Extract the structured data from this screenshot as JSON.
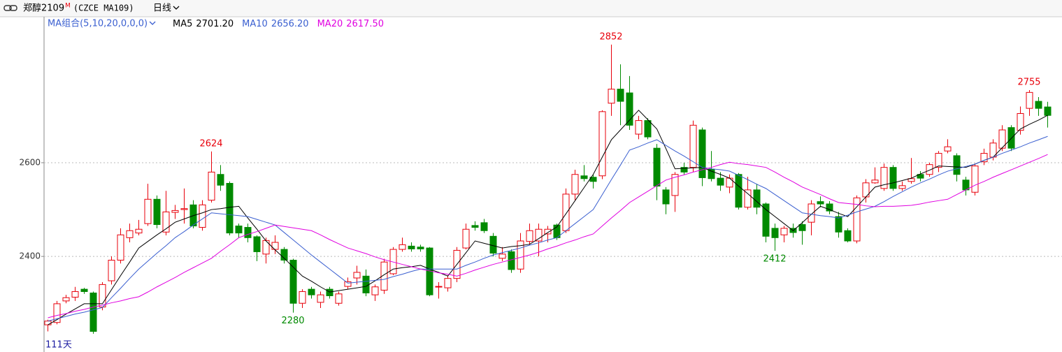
{
  "header": {
    "title": "郑醇2109",
    "badge": "M",
    "code": "(CZCE MA109)",
    "period": "日线"
  },
  "chart_data": {
    "type": "candlestick",
    "ma_group": "MA组合(5,10,20,0,0,0)",
    "bar_count_label": "111天",
    "ylim": [
      2196,
      2910
    ],
    "yticks": [
      2400,
      2600
    ],
    "grid": true,
    "up_color": "#e8000b",
    "down_color": "#008a00",
    "open": [
      2254,
      2259,
      2305,
      2313,
      2330,
      2322,
      2292,
      2348,
      2392,
      2440,
      2450,
      2470,
      2522,
      2452,
      2494,
      2500,
      2510,
      2462,
      2520,
      2575,
      2556,
      2465,
      2462,
      2442,
      2405,
      2415,
      2415,
      2392,
      2300,
      2330,
      2302,
      2330,
      2300,
      2336,
      2354,
      2358,
      2318,
      2328,
      2363,
      2415,
      2422,
      2420,
      2418,
      2335,
      2333,
      2353,
      2418,
      2466,
      2472,
      2443,
      2396,
      2410,
      2373,
      2432,
      2433,
      2448,
      2467,
      2455,
      2533,
      2572,
      2569,
      2572,
      2727,
      2757,
      2749,
      2661,
      2690,
      2631,
      2542,
      2530,
      2590,
      2590,
      2670,
      2586,
      2567,
      2548,
      2575,
      2505,
      2542,
      2512,
      2460,
      2446,
      2460,
      2468,
      2473,
      2517,
      2512,
      2485,
      2455,
      2433,
      2527,
      2557,
      2545,
      2590,
      2545,
      2560,
      2575,
      2575,
      2590,
      2625,
      2615,
      2563,
      2537,
      2602,
      2612,
      2631,
      2675,
      2669,
      2716,
      2731,
      2719
    ],
    "high": [
      2265,
      2305,
      2318,
      2335,
      2333,
      2325,
      2345,
      2400,
      2460,
      2470,
      2478,
      2555,
      2530,
      2540,
      2510,
      2545,
      2520,
      2520,
      2624,
      2595,
      2560,
      2470,
      2470,
      2445,
      2440,
      2445,
      2420,
      2395,
      2330,
      2335,
      2325,
      2335,
      2325,
      2355,
      2380,
      2372,
      2340,
      2395,
      2420,
      2440,
      2430,
      2425,
      2420,
      2345,
      2360,
      2420,
      2470,
      2475,
      2480,
      2450,
      2420,
      2415,
      2450,
      2470,
      2470,
      2465,
      2470,
      2545,
      2585,
      2595,
      2575,
      2712,
      2852,
      2810,
      2785,
      2700,
      2695,
      2640,
      2548,
      2580,
      2600,
      2690,
      2675,
      2625,
      2580,
      2575,
      2578,
      2570,
      2555,
      2515,
      2470,
      2465,
      2470,
      2475,
      2520,
      2528,
      2518,
      2495,
      2460,
      2530,
      2565,
      2590,
      2598,
      2595,
      2560,
      2610,
      2582,
      2600,
      2625,
      2650,
      2620,
      2570,
      2598,
      2630,
      2650,
      2680,
      2680,
      2720,
      2755,
      2740,
      2730
    ],
    "low": [
      2240,
      2255,
      2300,
      2305,
      2320,
      2235,
      2285,
      2340,
      2385,
      2430,
      2445,
      2465,
      2460,
      2445,
      2480,
      2470,
      2460,
      2455,
      2515,
      2540,
      2445,
      2440,
      2430,
      2390,
      2385,
      2405,
      2385,
      2280,
      2290,
      2310,
      2290,
      2310,
      2295,
      2330,
      2340,
      2315,
      2305,
      2320,
      2360,
      2410,
      2410,
      2410,
      2315,
      2310,
      2325,
      2345,
      2415,
      2455,
      2450,
      2400,
      2390,
      2365,
      2365,
      2425,
      2400,
      2430,
      2435,
      2450,
      2520,
      2560,
      2545,
      2565,
      2700,
      2680,
      2670,
      2650,
      2650,
      2520,
      2490,
      2495,
      2575,
      2580,
      2550,
      2560,
      2540,
      2535,
      2500,
      2500,
      2490,
      2430,
      2412,
      2430,
      2440,
      2425,
      2445,
      2505,
      2490,
      2440,
      2430,
      2428,
      2515,
      2555,
      2540,
      2540,
      2540,
      2555,
      2560,
      2570,
      2580,
      2620,
      2560,
      2530,
      2530,
      2595,
      2605,
      2625,
      2625,
      2660,
      2700,
      2700,
      2675
    ],
    "close": [
      2262,
      2299,
      2312,
      2325,
      2325,
      2240,
      2340,
      2392,
      2446,
      2455,
      2458,
      2522,
      2468,
      2495,
      2498,
      2502,
      2465,
      2510,
      2580,
      2552,
      2450,
      2450,
      2440,
      2410,
      2434,
      2430,
      2392,
      2300,
      2325,
      2318,
      2318,
      2316,
      2320,
      2346,
      2366,
      2322,
      2335,
      2388,
      2415,
      2425,
      2416,
      2416,
      2318,
      2336,
      2353,
      2413,
      2458,
      2462,
      2455,
      2407,
      2405,
      2372,
      2433,
      2455,
      2458,
      2458,
      2440,
      2533,
      2575,
      2566,
      2560,
      2709,
      2757,
      2731,
      2680,
      2690,
      2655,
      2550,
      2512,
      2575,
      2580,
      2680,
      2568,
      2566,
      2552,
      2567,
      2505,
      2542,
      2505,
      2443,
      2440,
      2460,
      2451,
      2455,
      2512,
      2512,
      2497,
      2452,
      2433,
      2525,
      2557,
      2563,
      2590,
      2545,
      2551,
      2566,
      2567,
      2596,
      2620,
      2634,
      2575,
      2542,
      2593,
      2620,
      2642,
      2670,
      2631,
      2705,
      2750,
      2716,
      2701
    ],
    "series": [
      {
        "name": "MA5",
        "color": "#000000",
        "legend_label": "2701.20",
        "values": [
          2254,
          2265,
          2277,
          2288,
          2299,
          2299,
          2299,
          2329,
          2359,
          2388,
          2418,
          2432,
          2446,
          2459,
          2473,
          2480,
          2487,
          2493,
          2500,
          2502,
          2505,
          2507,
          2482,
          2458,
          2433,
          2414,
          2396,
          2377,
          2358,
          2347,
          2335,
          2324,
          2327,
          2330,
          2333,
          2336,
          2348,
          2361,
          2373,
          2376,
          2378,
          2381,
          2373,
          2366,
          2358,
          2383,
          2408,
          2433,
          2428,
          2423,
          2418,
          2421,
          2423,
          2426,
          2438,
          2451,
          2463,
          2491,
          2519,
          2547,
          2575,
          2612,
          2649,
          2670,
          2691,
          2712,
          2692,
          2672,
          2630,
          2587,
          2588,
          2589,
          2590,
          2582,
          2575,
          2567,
          2550,
          2534,
          2517,
          2500,
          2485,
          2470,
          2455,
          2472,
          2490,
          2507,
          2500,
          2492,
          2485,
          2506,
          2527,
          2548,
          2553,
          2557,
          2562,
          2567,
          2576,
          2584,
          2593,
          2592,
          2591,
          2590,
          2597,
          2605,
          2612,
          2632,
          2652,
          2672,
          2682,
          2691,
          2701.2
        ]
      },
      {
        "name": "MA10",
        "color": "#3a5fd0",
        "legend_label": "2656.20",
        "values": [
          2262,
          2267,
          2272,
          2277,
          2281,
          2286,
          2291,
          2312,
          2332,
          2353,
          2373,
          2390,
          2407,
          2423,
          2440,
          2453,
          2467,
          2480,
          2493,
          2491,
          2489,
          2487,
          2485,
          2479,
          2473,
          2467,
          2451,
          2435,
          2419,
          2403,
          2388,
          2373,
          2358,
          2343,
          2345,
          2347,
          2349,
          2351,
          2357,
          2362,
          2368,
          2373,
          2373,
          2373,
          2373,
          2373,
          2381,
          2388,
          2396,
          2403,
          2408,
          2413,
          2418,
          2424,
          2429,
          2435,
          2440,
          2455,
          2470,
          2485,
          2500,
          2532,
          2564,
          2595,
          2627,
          2634,
          2642,
          2649,
          2637,
          2625,
          2614,
          2602,
          2590,
          2587,
          2585,
          2582,
          2573,
          2564,
          2554,
          2545,
          2532,
          2519,
          2506,
          2493,
          2490,
          2487,
          2485,
          2482,
          2488,
          2495,
          2501,
          2507,
          2517,
          2528,
          2538,
          2548,
          2557,
          2565,
          2574,
          2582,
          2587,
          2592,
          2597,
          2605,
          2612,
          2620,
          2627,
          2634,
          2642,
          2649,
          2656.2
        ]
      },
      {
        "name": "MA20",
        "color": "#e000e0",
        "legend_label": "2617.50",
        "values": [
          2269,
          2274,
          2278,
          2283,
          2287,
          2292,
          2296,
          2301,
          2305,
          2310,
          2314,
          2324,
          2335,
          2345,
          2355,
          2366,
          2376,
          2386,
          2396,
          2411,
          2425,
          2440,
          2447,
          2453,
          2460,
          2467,
          2464,
          2461,
          2458,
          2455,
          2446,
          2436,
          2427,
          2418,
          2412,
          2406,
          2399,
          2393,
          2388,
          2383,
          2378,
          2373,
          2369,
          2365,
          2362,
          2358,
          2364,
          2371,
          2377,
          2383,
          2388,
          2393,
          2398,
          2403,
          2409,
          2416,
          2422,
          2429,
          2435,
          2442,
          2448,
          2465,
          2482,
          2498,
          2515,
          2527,
          2539,
          2551,
          2563,
          2569,
          2574,
          2580,
          2585,
          2590,
          2596,
          2601,
          2598,
          2596,
          2593,
          2590,
          2580,
          2569,
          2559,
          2548,
          2540,
          2532,
          2523,
          2515,
          2513,
          2511,
          2508,
          2506,
          2507,
          2507,
          2508,
          2509,
          2512,
          2516,
          2519,
          2522,
          2532,
          2542,
          2552,
          2560,
          2569,
          2577,
          2585,
          2593,
          2601,
          2609,
          2617.5
        ]
      }
    ],
    "annotations": [
      {
        "label": "2624",
        "value": 2624,
        "kind": "high"
      },
      {
        "label": "2280",
        "value": 2280,
        "kind": "low"
      },
      {
        "label": "2852",
        "value": 2852,
        "kind": "high"
      },
      {
        "label": "2412",
        "value": 2412,
        "kind": "low"
      },
      {
        "label": "2755",
        "value": 2755,
        "kind": "high"
      }
    ]
  }
}
